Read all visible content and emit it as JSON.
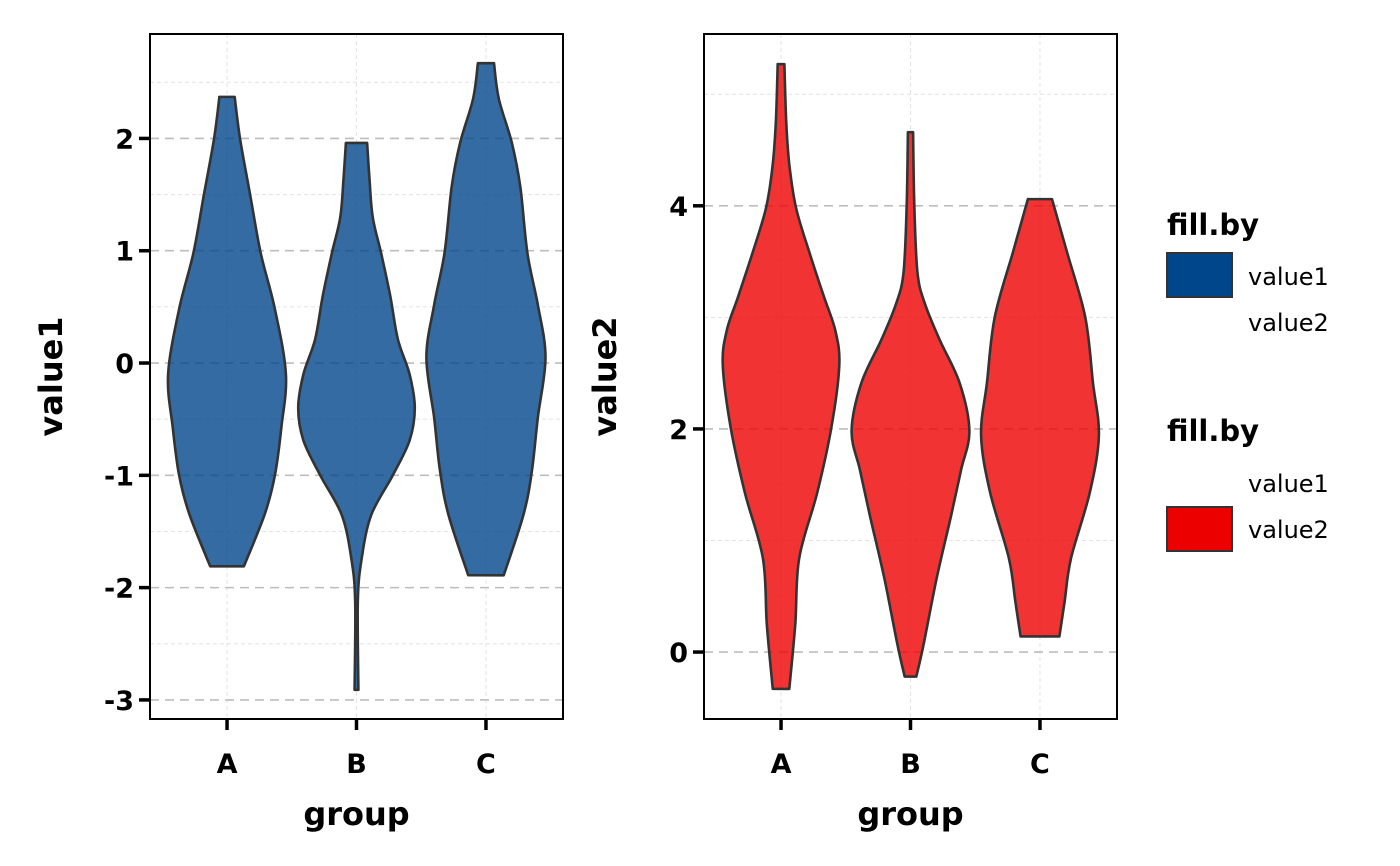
{
  "chart_data": [
    {
      "type": "violin",
      "xlabel": "group",
      "ylabel": "value1",
      "categories": [
        "A",
        "B",
        "C"
      ],
      "xlim": [
        0.405,
        3.595
      ],
      "ylim": [
        -3.17,
        2.93
      ],
      "yticks": [
        -3,
        -2,
        -1,
        0,
        1,
        2
      ],
      "ytick_labels": [
        "-3",
        "-2",
        "-1",
        "0",
        "1",
        "2"
      ],
      "minor_grid_y": [
        -2.5,
        -1.5,
        -0.5,
        0.5,
        1.5,
        2.5
      ],
      "grid": true,
      "fill_color": "#00468B",
      "fill_opacity": 0.8,
      "outline_color": "#333333",
      "half_width_note": "profiles are [y, half-width in category units]",
      "violins": [
        {
          "group": "A",
          "profile": [
            [
              2.37,
              0.059
            ],
            [
              2.0,
              0.1
            ],
            [
              1.49,
              0.18
            ],
            [
              0.98,
              0.26
            ],
            [
              0.48,
              0.37
            ],
            [
              -0.1,
              0.455
            ],
            [
              -0.57,
              0.42
            ],
            [
              -1.0,
              0.37
            ],
            [
              -1.35,
              0.29
            ],
            [
              -1.81,
              0.13
            ]
          ]
        },
        {
          "group": "B",
          "profile": [
            [
              1.96,
              0.082
            ],
            [
              1.65,
              0.1
            ],
            [
              1.3,
              0.125
            ],
            [
              0.98,
              0.19
            ],
            [
              0.6,
              0.26
            ],
            [
              0.21,
              0.32
            ],
            [
              -0.1,
              0.41
            ],
            [
              -0.4,
              0.45
            ],
            [
              -0.69,
              0.41
            ],
            [
              -1.0,
              0.28
            ],
            [
              -1.35,
              0.115
            ],
            [
              -1.74,
              0.04
            ],
            [
              -2.13,
              0.01
            ],
            [
              -2.91,
              0.015
            ]
          ]
        },
        {
          "group": "C",
          "profile": [
            [
              2.67,
              0.062
            ],
            [
              2.35,
              0.1
            ],
            [
              1.96,
              0.2
            ],
            [
              1.57,
              0.265
            ],
            [
              0.98,
              0.32
            ],
            [
              0.52,
              0.4
            ],
            [
              0.05,
              0.46
            ],
            [
              -0.49,
              0.4
            ],
            [
              -0.96,
              0.355
            ],
            [
              -1.35,
              0.29
            ],
            [
              -1.89,
              0.137
            ]
          ]
        }
      ]
    },
    {
      "type": "violin",
      "xlabel": "group",
      "ylabel": "value2",
      "categories": [
        "A",
        "B",
        "C"
      ],
      "xlim": [
        0.405,
        3.595
      ],
      "ylim": [
        -0.6,
        5.54
      ],
      "yticks": [
        0,
        2,
        4
      ],
      "ytick_labels": [
        "0",
        "2",
        "4"
      ],
      "minor_grid_y": [
        1,
        3,
        5
      ],
      "grid": true,
      "fill_color": "#ED0000",
      "fill_opacity": 0.8,
      "outline_color": "#333333",
      "violins": [
        {
          "group": "A",
          "profile": [
            [
              5.27,
              0.026
            ],
            [
              4.76,
              0.04
            ],
            [
              4.37,
              0.064
            ],
            [
              3.98,
              0.116
            ],
            [
              3.58,
              0.22
            ],
            [
              3.19,
              0.33
            ],
            [
              2.88,
              0.42
            ],
            [
              2.57,
              0.45
            ],
            [
              2.02,
              0.39
            ],
            [
              1.43,
              0.28
            ],
            [
              0.84,
              0.14
            ],
            [
              0.25,
              0.11
            ],
            [
              -0.33,
              0.064
            ]
          ]
        },
        {
          "group": "B",
          "profile": [
            [
              4.66,
              0.02
            ],
            [
              3.98,
              0.03
            ],
            [
              3.39,
              0.055
            ],
            [
              3.11,
              0.115
            ],
            [
              2.8,
              0.225
            ],
            [
              2.41,
              0.38
            ],
            [
              1.98,
              0.455
            ],
            [
              1.63,
              0.39
            ],
            [
              1.23,
              0.315
            ],
            [
              0.65,
              0.2
            ],
            [
              0.06,
              0.1
            ],
            [
              -0.22,
              0.045
            ]
          ]
        },
        {
          "group": "C",
          "profile": [
            [
              4.06,
              0.093
            ],
            [
              3.58,
              0.21
            ],
            [
              3.0,
              0.35
            ],
            [
              2.41,
              0.41
            ],
            [
              1.94,
              0.455
            ],
            [
              1.43,
              0.385
            ],
            [
              0.84,
              0.24
            ],
            [
              0.45,
              0.19
            ],
            [
              0.14,
              0.15
            ]
          ]
        }
      ]
    }
  ],
  "legends": [
    {
      "title": "fill.by",
      "items": [
        {
          "label": "value1",
          "color": "#00468B",
          "shown": true
        },
        {
          "label": "value2",
          "color": "#ED0000",
          "shown": false
        }
      ]
    },
    {
      "title": "fill.by",
      "items": [
        {
          "label": "value1",
          "color": "#00468B",
          "shown": false
        },
        {
          "label": "value2",
          "color": "#ED0000",
          "shown": true
        }
      ]
    }
  ]
}
